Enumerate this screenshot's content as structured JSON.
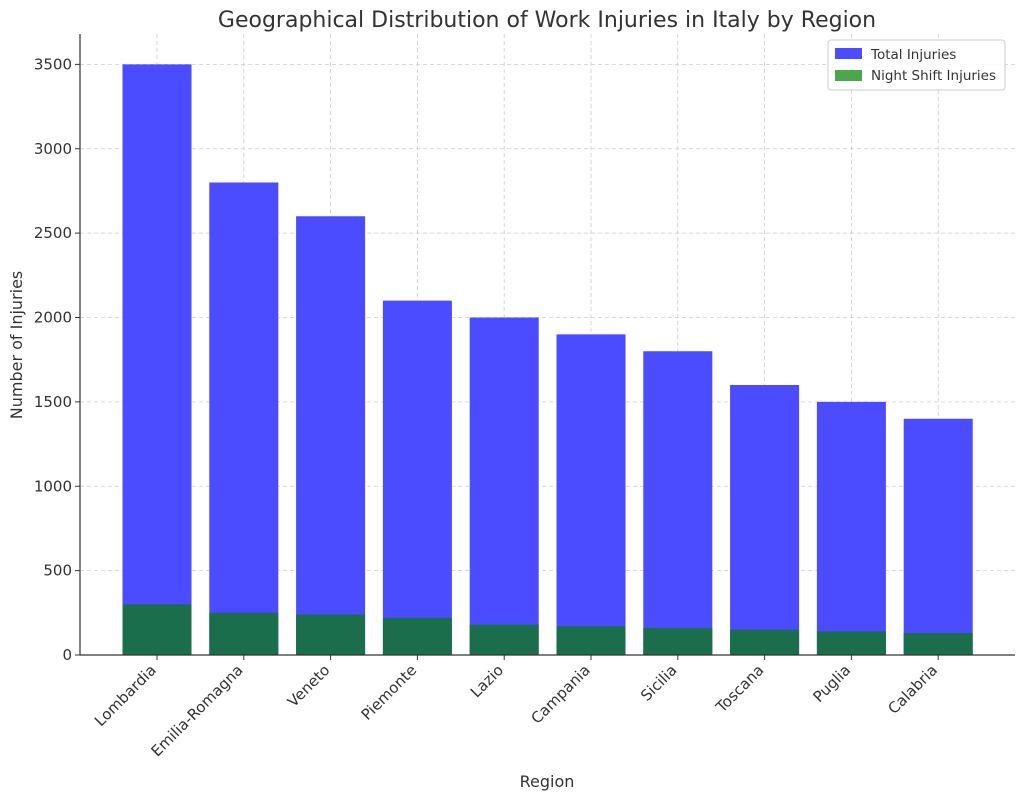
{
  "chart_data": {
    "type": "bar",
    "title": "Geographical Distribution of Work Injuries in Italy by Region",
    "xlabel": "Region",
    "ylabel": "Number of Injuries",
    "categories": [
      "Lombardia",
      "Emilia-Romagna",
      "Veneto",
      "Piemonte",
      "Lazio",
      "Campania",
      "Sicilia",
      "Toscana",
      "Puglia",
      "Calabria"
    ],
    "series": [
      {
        "name": "Total Injuries",
        "color": "#4b4bff",
        "values": [
          3500,
          2800,
          2600,
          2100,
          2000,
          1900,
          1800,
          1600,
          1500,
          1400
        ]
      },
      {
        "name": "Night Shift Injuries",
        "color": "#1a6e4b",
        "legend_color": "#4ca64c",
        "values": [
          300,
          250,
          240,
          220,
          180,
          170,
          160,
          150,
          140,
          130
        ]
      }
    ],
    "ylim": [
      0,
      3680
    ],
    "yticks": [
      0,
      500,
      1000,
      1500,
      2000,
      2500,
      3000,
      3500
    ],
    "grid": true,
    "legend_position": "top-right"
  }
}
